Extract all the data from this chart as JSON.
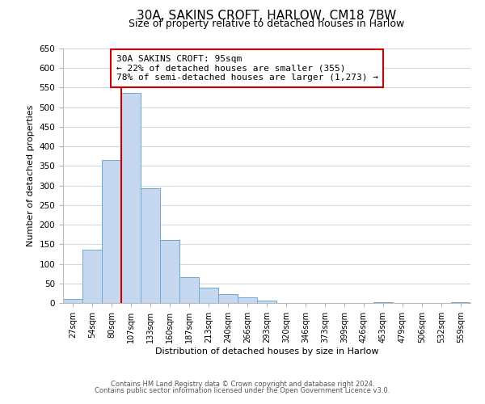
{
  "title": "30A, SAKINS CROFT, HARLOW, CM18 7BW",
  "subtitle": "Size of property relative to detached houses in Harlow",
  "xlabel": "Distribution of detached houses by size in Harlow",
  "ylabel": "Number of detached properties",
  "bar_labels": [
    "27sqm",
    "54sqm",
    "80sqm",
    "107sqm",
    "133sqm",
    "160sqm",
    "187sqm",
    "213sqm",
    "240sqm",
    "266sqm",
    "293sqm",
    "320sqm",
    "346sqm",
    "373sqm",
    "399sqm",
    "426sqm",
    "453sqm",
    "479sqm",
    "506sqm",
    "532sqm",
    "559sqm"
  ],
  "bar_values": [
    10,
    137,
    365,
    537,
    293,
    160,
    67,
    40,
    22,
    15,
    7,
    0,
    0,
    0,
    0,
    0,
    2,
    0,
    0,
    0,
    2
  ],
  "bar_color": "#c5d8f0",
  "bar_edge_color": "#6aaad4",
  "vline_color": "#cc0000",
  "vline_x": 2.5,
  "annotation_text": "30A SAKINS CROFT: 95sqm\n← 22% of detached houses are smaller (355)\n78% of semi-detached houses are larger (1,273) →",
  "annotation_box_color": "#ffffff",
  "annotation_box_edge": "#cc0000",
  "ylim": [
    0,
    650
  ],
  "yticks": [
    0,
    50,
    100,
    150,
    200,
    250,
    300,
    350,
    400,
    450,
    500,
    550,
    600,
    650
  ],
  "footer_line1": "Contains HM Land Registry data © Crown copyright and database right 2024.",
  "footer_line2": "Contains public sector information licensed under the Open Government Licence v3.0.",
  "background_color": "#ffffff",
  "grid_color": "#ccd9e8",
  "title_fontsize": 11,
  "subtitle_fontsize": 9,
  "xlabel_fontsize": 8,
  "ylabel_fontsize": 8
}
